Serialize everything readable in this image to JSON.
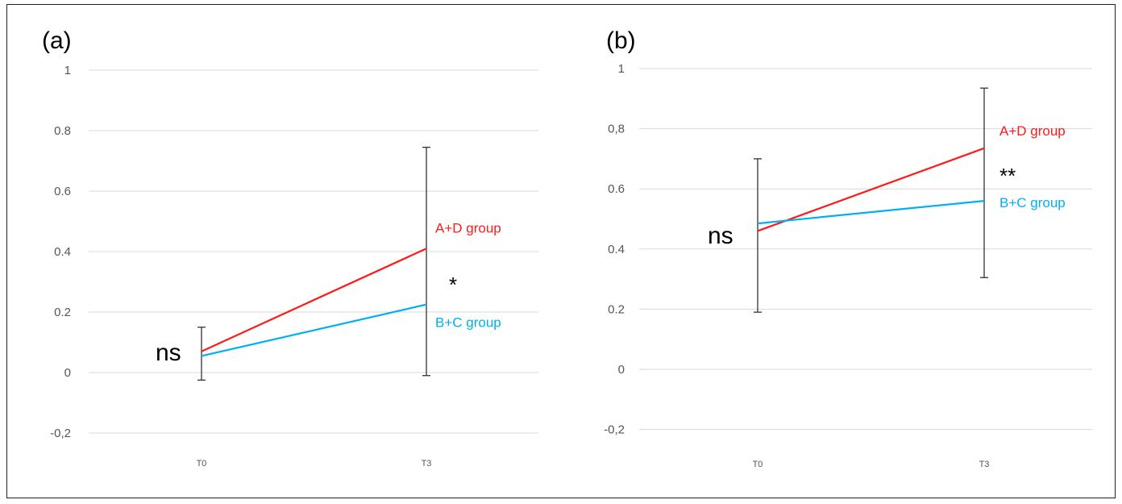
{
  "colors": {
    "a_plus_d": "#ff1a1a",
    "b_plus_c": "#00b0f0",
    "error": "#333333",
    "grid": "#d9d9d9"
  },
  "chart_data": [
    {
      "type": "line",
      "panel_label": "(a)",
      "categories": [
        "T0",
        "T3"
      ],
      "ylim": [
        -0.2,
        1
      ],
      "yticks": [
        "-0,2",
        "0",
        "0.2",
        "0.4",
        "0.6",
        "0.8",
        "1"
      ],
      "ytick_values": [
        -0.2,
        0,
        0.2,
        0.4,
        0.6,
        0.8,
        1
      ],
      "grid": true,
      "series": [
        {
          "name": "A+D group",
          "values": [
            0.07,
            0.41
          ],
          "color_key": "a_plus_d"
        },
        {
          "name": "B+C group",
          "values": [
            0.055,
            0.225
          ],
          "color_key": "b_plus_c"
        }
      ],
      "error_bars": [
        {
          "category": "T0",
          "low": -0.025,
          "high": 0.15
        },
        {
          "category": "T3",
          "low": -0.01,
          "high": 0.745
        }
      ],
      "annotations": {
        "t0": "ns",
        "t3": "*"
      }
    },
    {
      "type": "line",
      "panel_label": "(b)",
      "categories": [
        "T0",
        "T3"
      ],
      "ylim": [
        -0.2,
        1
      ],
      "yticks": [
        "-0,2",
        "0",
        "0.2",
        "0.4",
        "0.6",
        "0,8",
        "1"
      ],
      "ytick_values": [
        -0.2,
        0,
        0.2,
        0.4,
        0.6,
        0.8,
        1
      ],
      "grid": true,
      "series": [
        {
          "name": "A+D group",
          "values": [
            0.46,
            0.735
          ],
          "color_key": "a_plus_d"
        },
        {
          "name": "B+C group",
          "values": [
            0.485,
            0.56
          ],
          "color_key": "b_plus_c"
        }
      ],
      "error_bars": [
        {
          "category": "T0",
          "low": 0.19,
          "high": 0.7
        },
        {
          "category": "T3",
          "low": 0.305,
          "high": 0.935
        }
      ],
      "annotations": {
        "t0": "ns",
        "t3": "**"
      }
    }
  ]
}
